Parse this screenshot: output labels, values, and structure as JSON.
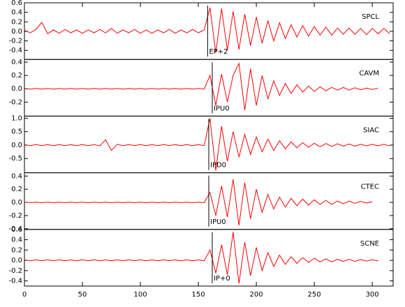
{
  "chart_data": {
    "type": "line",
    "x": [
      0,
      5,
      10,
      15,
      20,
      25,
      30,
      35,
      40,
      45,
      50,
      55,
      60,
      65,
      70,
      75,
      80,
      85,
      90,
      95,
      100,
      105,
      110,
      115,
      120,
      125,
      130,
      135,
      140,
      145,
      150,
      155,
      160,
      165,
      170,
      175,
      180,
      185,
      190,
      195,
      200,
      205,
      210,
      215,
      220,
      225,
      230,
      235,
      240,
      245,
      250,
      255,
      260,
      265,
      270,
      275,
      280,
      285,
      290,
      295,
      300,
      305,
      310,
      315
    ],
    "xlim": [
      0,
      318
    ],
    "xticks": [
      0,
      50,
      100,
      150,
      200,
      250,
      300
    ],
    "series": [
      {
        "name": "SPCL",
        "color": "#ff0000",
        "ylim": [
          -0.59,
          0.6
        ],
        "yticks": [
          0.6,
          0.4,
          0.2,
          {
            "value": 0,
            "label": "0.0"
          },
          -0.2,
          -0.4
        ],
        "pick": {
          "x": 158,
          "label": "EP+2"
        },
        "values": [
          0.02,
          -0.03,
          0.04,
          0.19,
          -0.05,
          0.03,
          -0.04,
          0.04,
          -0.03,
          0.03,
          -0.04,
          0.03,
          -0.03,
          0.04,
          -0.03,
          0.06,
          -0.04,
          0.03,
          -0.03,
          0.04,
          -0.04,
          0.03,
          -0.04,
          0.03,
          -0.03,
          0.04,
          -0.04,
          0.03,
          -0.03,
          0.04,
          -0.03,
          0.03,
          0.5,
          -0.45,
          0.48,
          -0.4,
          0.42,
          -0.38,
          0.36,
          -0.3,
          0.3,
          -0.25,
          0.22,
          -0.2,
          0.18,
          -0.15,
          0.14,
          -0.12,
          0.12,
          -0.1,
          0.1,
          -0.08,
          0.09,
          -0.08,
          0.07,
          -0.06,
          0.07,
          -0.06,
          0.06,
          -0.07,
          0.06,
          -0.05,
          0.06,
          -0.05
        ]
      },
      {
        "name": "CAVM",
        "color": "#ff0000",
        "ylim": [
          -0.41,
          0.44
        ],
        "yticks": [
          0.4,
          0.2,
          {
            "value": 0,
            "label": "0.0"
          },
          -0.2
        ],
        "pick": {
          "x": 162,
          "label": "IPU0"
        },
        "values": [
          0.005,
          -0.005,
          0.005,
          -0.005,
          0.005,
          -0.005,
          0.005,
          -0.005,
          0.005,
          -0.005,
          0.005,
          -0.005,
          0.005,
          -0.005,
          0.005,
          -0.005,
          0.005,
          -0.005,
          0.005,
          -0.005,
          0.005,
          -0.005,
          0.005,
          -0.005,
          0.005,
          -0.005,
          0.005,
          -0.005,
          0.005,
          -0.005,
          0.005,
          -0.005,
          0.2,
          -0.25,
          0.22,
          -0.2,
          0.2,
          0.38,
          -0.32,
          0.3,
          -0.25,
          0.2,
          -0.15,
          0.12,
          -0.1,
          0.08,
          -0.07,
          0.06,
          -0.05,
          0.04,
          -0.04,
          0.03,
          -0.03,
          0.02,
          -0.02,
          0.02,
          -0.02,
          0.015,
          -0.015,
          0.01,
          -0.01,
          0.01,
          null,
          null
        ]
      },
      {
        "name": "SIAC",
        "color": "#ff0000",
        "ylim": [
          -1.03,
          1.08
        ],
        "yticks": [
          {
            "value": 1,
            "label": "1.0"
          },
          0.5,
          {
            "value": 0,
            "label": "0.0"
          },
          -0.5
        ],
        "pick": {
          "x": 159,
          "label": "IPD0"
        },
        "values": [
          0.02,
          -0.02,
          0.02,
          -0.02,
          0.02,
          -0.02,
          0.02,
          -0.02,
          0.02,
          -0.02,
          0.02,
          -0.02,
          0.02,
          -0.03,
          0.2,
          -0.2,
          0.03,
          -0.02,
          0.02,
          -0.02,
          0.02,
          -0.02,
          0.02,
          -0.02,
          0.02,
          -0.02,
          0.02,
          -0.02,
          0.02,
          -0.02,
          0.02,
          -0.02,
          1.0,
          -0.95,
          0.7,
          -0.6,
          0.5,
          -0.45,
          0.4,
          -0.35,
          0.3,
          -0.25,
          0.22,
          -0.2,
          0.16,
          -0.14,
          0.12,
          -0.1,
          0.09,
          -0.08,
          0.07,
          -0.06,
          0.06,
          -0.05,
          0.05,
          -0.04,
          0.04,
          -0.04,
          0.03,
          -0.03,
          0.03,
          -0.03,
          0.03,
          -0.03
        ]
      },
      {
        "name": "CTEC",
        "color": "#ff0000",
        "ylim": [
          -0.41,
          0.45
        ],
        "yticks": [
          0.4,
          0.2,
          {
            "value": 0,
            "label": "0.0"
          },
          -0.2,
          -0.4
        ],
        "pick": {
          "x": 159,
          "label": "IPU0"
        },
        "values": [
          0.004,
          -0.004,
          0.004,
          -0.004,
          0.004,
          -0.004,
          0.004,
          -0.004,
          0.004,
          -0.004,
          0.004,
          -0.004,
          0.004,
          -0.004,
          0.004,
          -0.004,
          0.004,
          -0.004,
          0.004,
          -0.004,
          0.004,
          -0.004,
          0.004,
          -0.004,
          0.004,
          -0.004,
          0.004,
          -0.004,
          0.004,
          -0.004,
          0.004,
          -0.004,
          0.15,
          -0.2,
          0.25,
          -0.22,
          0.35,
          -0.35,
          0.3,
          -0.25,
          0.2,
          -0.15,
          0.12,
          -0.1,
          0.08,
          -0.07,
          0.06,
          -0.05,
          0.05,
          -0.04,
          0.04,
          -0.03,
          0.03,
          -0.03,
          0.02,
          -0.02,
          0.02,
          -0.015,
          0.015,
          -0.01,
          0.01,
          null,
          null,
          null
        ]
      },
      {
        "name": "SCNE",
        "color": "#ff0000",
        "ylim": [
          -0.5,
          0.6
        ],
        "yticks": [
          0.6,
          0.4,
          0.2,
          {
            "value": 0,
            "label": "0.0"
          },
          -0.2,
          -0.4
        ],
        "pick": {
          "x": 162,
          "label": "IP+0"
        },
        "values": [
          0.01,
          -0.01,
          0.01,
          -0.01,
          0.01,
          -0.01,
          0.01,
          -0.01,
          0.01,
          -0.01,
          0.01,
          -0.01,
          0.01,
          -0.01,
          0.01,
          -0.01,
          0.01,
          -0.01,
          0.01,
          -0.01,
          0.01,
          -0.01,
          0.01,
          -0.01,
          0.01,
          -0.01,
          0.01,
          -0.01,
          0.01,
          -0.01,
          0.01,
          -0.01,
          0.2,
          -0.25,
          0.3,
          -0.28,
          0.55,
          -0.45,
          0.35,
          -0.3,
          0.25,
          -0.2,
          0.15,
          -0.12,
          0.1,
          -0.08,
          0.07,
          -0.06,
          0.05,
          -0.04,
          0.04,
          -0.03,
          0.03,
          -0.03,
          0.02,
          -0.02,
          0.02,
          -0.02,
          0.015,
          -0.015,
          0.01,
          -0.01,
          null,
          null
        ]
      }
    ]
  }
}
